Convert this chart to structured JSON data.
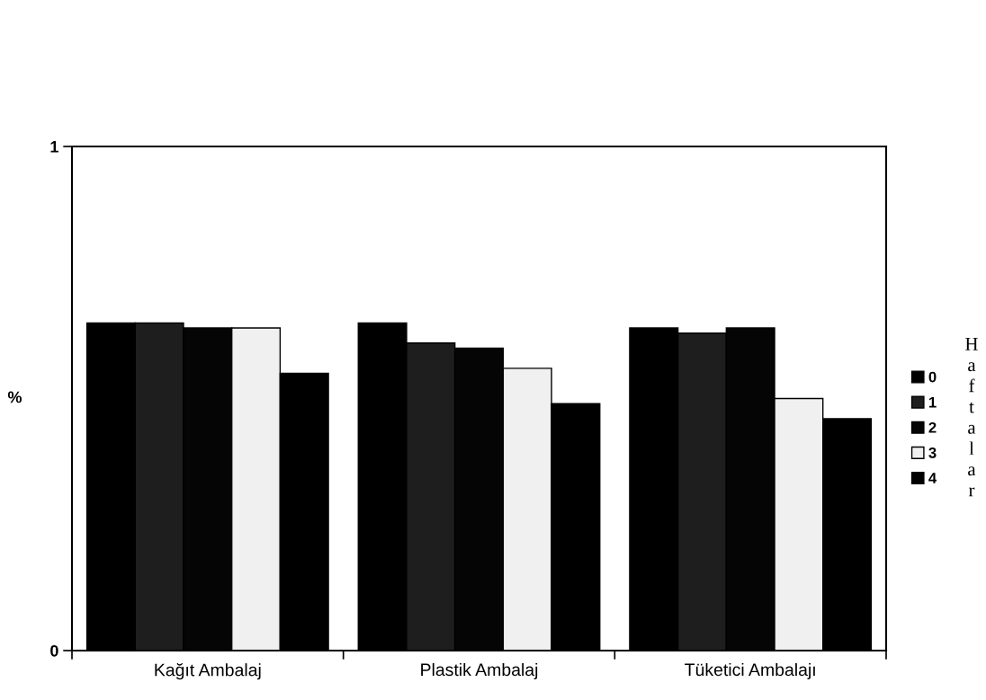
{
  "chart_data": {
    "type": "bar",
    "ylabel": "%",
    "legend_title": "Haftalar",
    "categories": [
      "Kağıt Ambalaj",
      "Plastik Ambalaj",
      "Tüketici Ambalajı"
    ],
    "series": [
      {
        "name": "0",
        "color": "#000000",
        "values": [
          0.65,
          0.65,
          0.64
        ]
      },
      {
        "name": "1",
        "color": "#1e1e1e",
        "values": [
          0.65,
          0.61,
          0.63
        ]
      },
      {
        "name": "2",
        "color": "#050505",
        "values": [
          0.64,
          0.6,
          0.64
        ]
      },
      {
        "name": "3",
        "color": "#f0f0f0",
        "values": [
          0.64,
          0.56,
          0.5
        ]
      },
      {
        "name": "4",
        "color": "#000000",
        "values": [
          0.55,
          0.49,
          0.46
        ]
      }
    ],
    "ylim": [
      0,
      1
    ],
    "yticks": [
      0,
      1
    ],
    "grid": false,
    "legend": "right"
  }
}
